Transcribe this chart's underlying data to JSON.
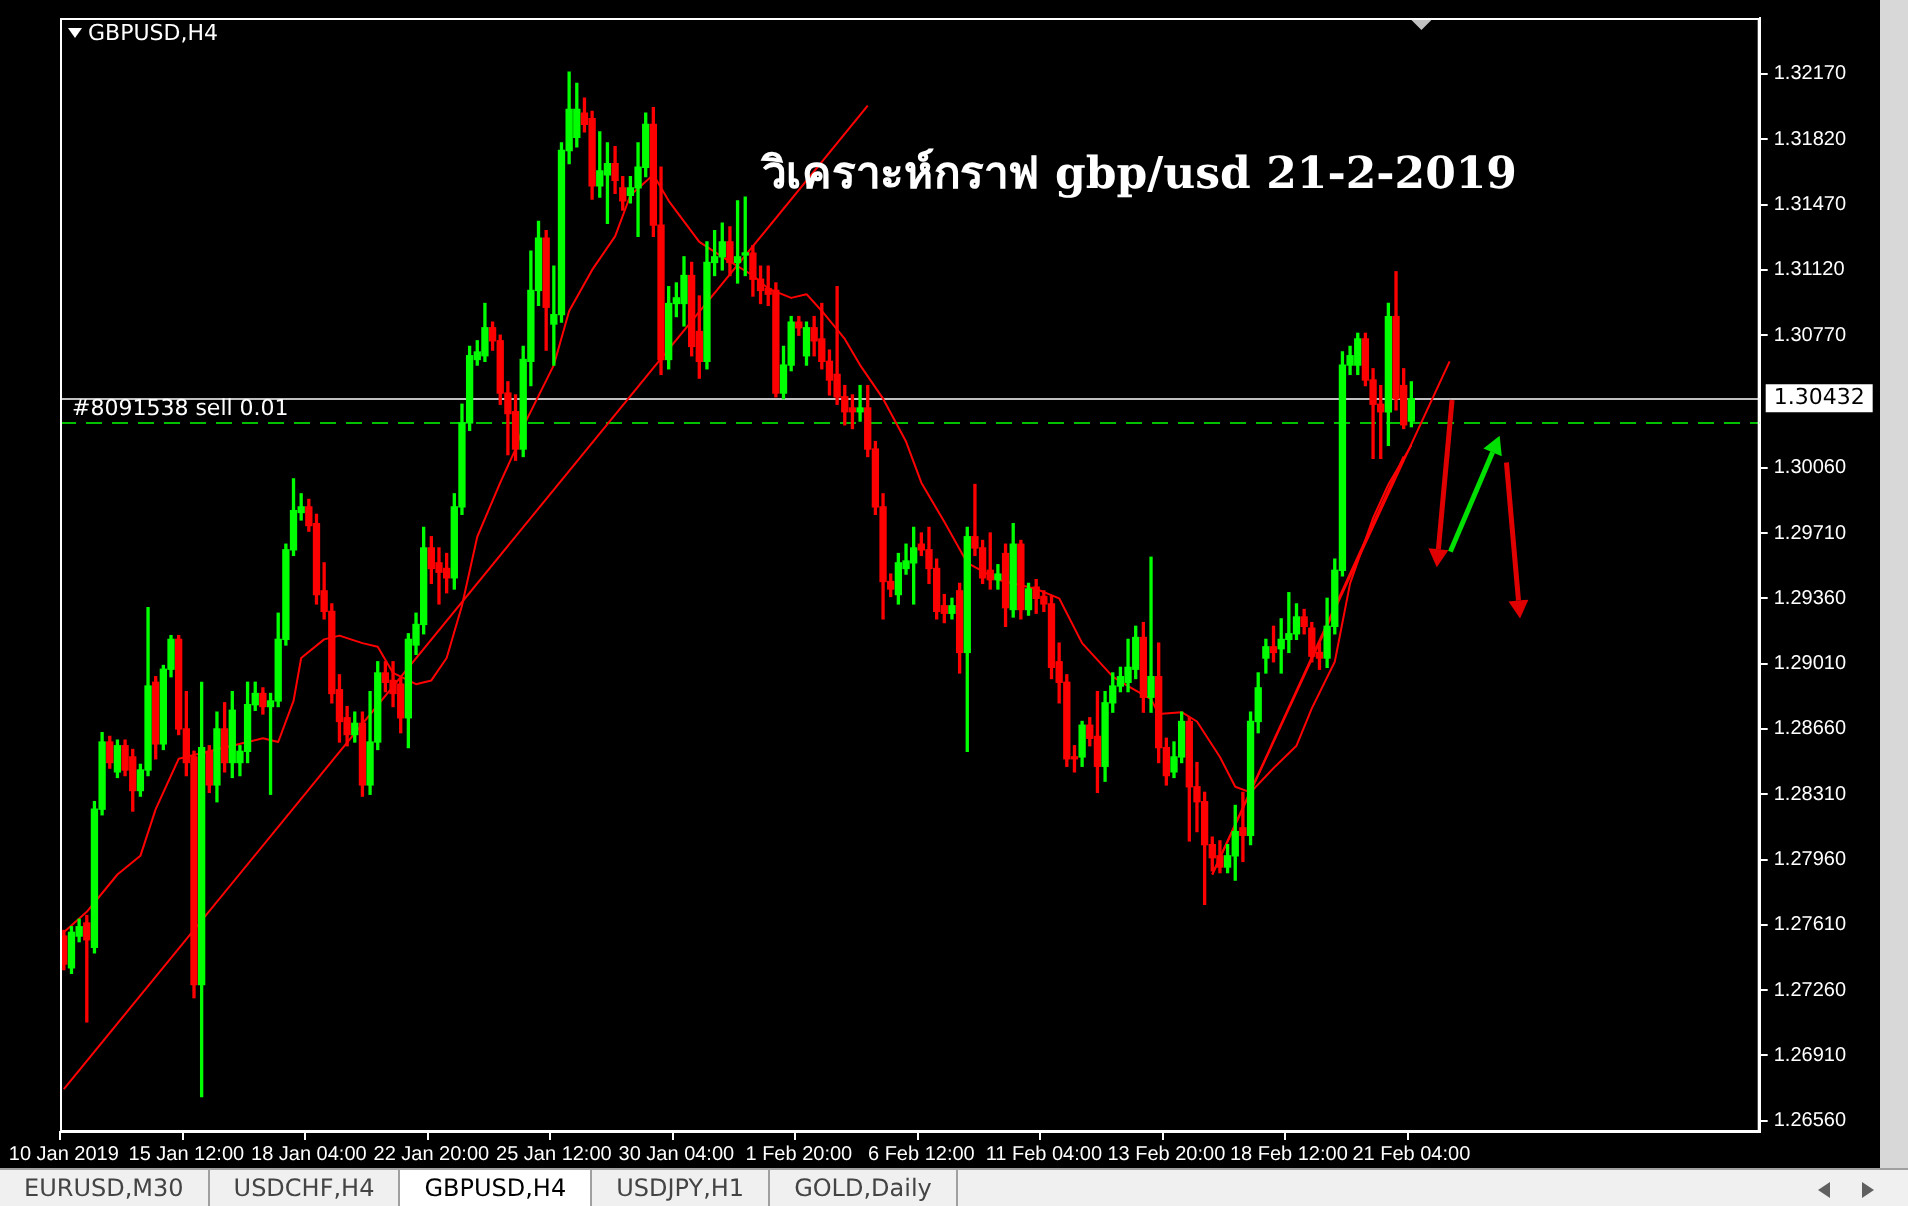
{
  "chart_data": {
    "type": "candlestick",
    "title": "วิเคราะห์กราฟ gbp/usd 21-2-2019",
    "annotations": [
      "GBPUSD,H4",
      "EURUSD,M30",
      "USDCHF,H4",
      "GBPUSD,H4",
      "USDJPY,H1",
      "GOLD,Daily"
    ],
    "categories": [
      "10 Jan 2019",
      null,
      null,
      null,
      null,
      null,
      null,
      null,
      null,
      null,
      null,
      null,
      null,
      null,
      null,
      null,
      "15 Jan 12:00",
      null,
      null,
      null,
      null,
      null,
      null,
      null,
      null,
      null,
      null,
      null,
      null,
      null,
      null,
      null,
      "18 Jan 04:00",
      null,
      null,
      null,
      null,
      null,
      null,
      null,
      null,
      null,
      null,
      null,
      null,
      null,
      null,
      null,
      "22 Jan 20:00",
      null,
      null,
      null,
      null,
      null,
      null,
      null,
      null,
      null,
      null,
      null,
      null,
      null,
      null,
      null,
      "25 Jan 12:00",
      null,
      null,
      null,
      null,
      null,
      null,
      null,
      null,
      null,
      null,
      null,
      null,
      null,
      null,
      null,
      "30 Jan 04:00",
      null,
      null,
      null,
      null,
      null,
      null,
      null,
      null,
      null,
      null,
      null,
      null,
      null,
      null,
      null,
      "1 Feb 20:00",
      null,
      null,
      null,
      null,
      null,
      null,
      null,
      null,
      null,
      null,
      null,
      null,
      null,
      null,
      null,
      "6 Feb 12:00",
      null,
      null,
      null,
      null,
      null,
      null,
      null,
      null,
      null,
      null,
      null,
      null,
      null,
      null,
      null,
      "11 Feb 04:00",
      null,
      null,
      null,
      null,
      null,
      null,
      null,
      null,
      null,
      null,
      null,
      null,
      null,
      null,
      null,
      "13 Feb 20:00",
      null,
      null,
      null,
      null,
      null,
      null,
      null,
      null,
      null,
      null,
      null,
      null,
      null,
      null,
      null,
      "18 Feb 12:00",
      null,
      null,
      null,
      null,
      null,
      null,
      null,
      null,
      null,
      null,
      null,
      null,
      null,
      null,
      null,
      "21 Feb 04:00",
      null,
      null,
      null,
      null,
      null,
      null,
      null,
      null,
      null,
      null,
      null,
      null,
      null,
      null,
      null,
      null,
      null,
      null,
      null,
      null,
      null,
      null,
      null,
      null,
      null,
      null,
      null,
      null,
      null,
      null,
      null,
      null,
      null,
      null,
      null,
      null,
      null,
      null,
      null,
      null,
      null,
      null,
      null,
      null,
      null
    ],
    "ohlc": [
      [
        1.2755,
        1.2758,
        1.2737,
        1.274
      ],
      [
        1.2738,
        1.276,
        1.2735,
        1.2757
      ],
      [
        1.2755,
        1.2764,
        1.2752,
        1.276
      ],
      [
        1.2762,
        1.2766,
        1.2709,
        1.2753
      ],
      [
        1.2749,
        1.2827,
        1.2746,
        1.2823
      ],
      [
        1.2823,
        1.2864,
        1.282,
        1.2859
      ],
      [
        1.2859,
        1.2862,
        1.2845,
        1.2848
      ],
      [
        1.2843,
        1.286,
        1.284,
        1.2857
      ],
      [
        1.2857,
        1.286,
        1.2841,
        1.2844
      ],
      [
        1.2851,
        1.2855,
        1.2822,
        1.2833
      ],
      [
        1.2833,
        1.2847,
        1.283,
        1.2844
      ],
      [
        1.2844,
        1.2931,
        1.2841,
        1.2889
      ],
      [
        1.2891,
        1.2894,
        1.285,
        1.2858
      ],
      [
        1.2858,
        1.29,
        1.2855,
        1.2898
      ],
      [
        1.2898,
        1.2916,
        1.2894,
        1.2914
      ],
      [
        1.2914,
        1.2916,
        1.2863,
        1.2866
      ],
      [
        1.2866,
        1.2886,
        1.2841,
        1.2848
      ],
      [
        1.2851,
        1.2854,
        1.2722,
        1.2729
      ],
      [
        1.2729,
        1.2891,
        1.2669,
        1.2856
      ],
      [
        1.2854,
        1.2857,
        1.2832,
        1.2836
      ],
      [
        1.2836,
        1.2875,
        1.2827,
        1.2866
      ],
      [
        1.2866,
        1.288,
        1.2843,
        1.2848
      ],
      [
        1.2848,
        1.2886,
        1.284,
        1.2876
      ],
      [
        1.2848,
        1.2857,
        1.2841,
        1.2854
      ],
      [
        1.2854,
        1.2891,
        1.2848,
        1.2879
      ],
      [
        1.2879,
        1.2891,
        1.2876,
        1.2885
      ],
      [
        1.2885,
        1.2888,
        1.2874,
        1.2878
      ],
      [
        1.2878,
        1.2885,
        1.2831,
        1.2881
      ],
      [
        1.2881,
        1.2928,
        1.2878,
        1.2914
      ],
      [
        1.2914,
        1.2965,
        1.2911,
        1.2962
      ],
      [
        1.2962,
        1.3,
        1.2959,
        1.2983
      ],
      [
        1.2982,
        1.2992,
        1.2978,
        1.2985
      ],
      [
        1.2985,
        1.2989,
        1.2972,
        1.2975
      ],
      [
        1.2976,
        1.2981,
        1.2933,
        1.2938
      ],
      [
        1.294,
        1.2955,
        1.2925,
        1.2929
      ],
      [
        1.2929,
        1.2933,
        1.288,
        1.2885
      ],
      [
        1.2887,
        1.2895,
        1.2859,
        1.287
      ],
      [
        1.2872,
        1.2878,
        1.2857,
        1.2863
      ],
      [
        1.2863,
        1.2875,
        1.2859,
        1.2869
      ],
      [
        1.2869,
        1.2875,
        1.283,
        1.2836
      ],
      [
        1.2836,
        1.2886,
        1.2831,
        1.2859
      ],
      [
        1.2859,
        1.2902,
        1.2855,
        1.2896
      ],
      [
        1.2896,
        1.2902,
        1.2886,
        1.2891
      ],
      [
        1.2892,
        1.2902,
        1.2878,
        1.2885
      ],
      [
        1.289,
        1.2893,
        1.2864,
        1.2872
      ],
      [
        1.2872,
        1.2917,
        1.2856,
        1.2914
      ],
      [
        1.2911,
        1.2928,
        1.2906,
        1.2922
      ],
      [
        1.2922,
        1.2974,
        1.2917,
        1.2963
      ],
      [
        1.2963,
        1.2969,
        1.2944,
        1.2952
      ],
      [
        1.2955,
        1.2963,
        1.2933,
        1.295
      ],
      [
        1.2952,
        1.296,
        1.2939,
        1.2947
      ],
      [
        1.2947,
        1.2992,
        1.2941,
        1.2985
      ],
      [
        1.2985,
        1.304,
        1.2981,
        1.303
      ],
      [
        1.303,
        1.3071,
        1.3026,
        1.3066
      ],
      [
        1.3064,
        1.3074,
        1.3061,
        1.3068
      ],
      [
        1.3066,
        1.3094,
        1.3063,
        1.3081
      ],
      [
        1.3081,
        1.3084,
        1.3069,
        1.3074
      ],
      [
        1.3074,
        1.3077,
        1.304,
        1.3046
      ],
      [
        1.3046,
        1.3052,
        1.3013,
        1.3035
      ],
      [
        1.3036,
        1.3045,
        1.301,
        1.3016
      ],
      [
        1.3016,
        1.3071,
        1.3012,
        1.3064
      ],
      [
        1.3063,
        1.3122,
        1.305,
        1.3101
      ],
      [
        1.3101,
        1.3138,
        1.3093,
        1.3129
      ],
      [
        1.3129,
        1.3133,
        1.3069,
        1.3092
      ],
      [
        1.3083,
        1.3114,
        1.3061,
        1.3088
      ],
      [
        1.3088,
        1.318,
        1.3084,
        1.3176
      ],
      [
        1.3176,
        1.3218,
        1.3169,
        1.3198
      ],
      [
        1.3183,
        1.3212,
        1.3178,
        1.3198
      ],
      [
        1.3196,
        1.3204,
        1.3186,
        1.319
      ],
      [
        1.3193,
        1.3197,
        1.315,
        1.3157
      ],
      [
        1.3157,
        1.3186,
        1.3151,
        1.3165
      ],
      [
        1.3163,
        1.318,
        1.3137,
        1.3169
      ],
      [
        1.3169,
        1.3178,
        1.3153,
        1.316
      ],
      [
        1.3156,
        1.3162,
        1.3144,
        1.3149
      ],
      [
        1.3152,
        1.3162,
        1.3148,
        1.3156
      ],
      [
        1.3156,
        1.318,
        1.313,
        1.3167
      ],
      [
        1.3167,
        1.3196,
        1.3162,
        1.319
      ],
      [
        1.319,
        1.3199,
        1.313,
        1.3136
      ],
      [
        1.3136,
        1.3167,
        1.3056,
        1.3064
      ],
      [
        1.3064,
        1.3103,
        1.3059,
        1.3094
      ],
      [
        1.3094,
        1.3105,
        1.3087,
        1.3097
      ],
      [
        1.3094,
        1.3119,
        1.3082,
        1.3109
      ],
      [
        1.3109,
        1.3116,
        1.3066,
        1.3071
      ],
      [
        1.3079,
        1.3098,
        1.3054,
        1.3063
      ],
      [
        1.3063,
        1.3127,
        1.3059,
        1.3116
      ],
      [
        1.3116,
        1.3133,
        1.3109,
        1.3119
      ],
      [
        1.3119,
        1.3137,
        1.3112,
        1.3127
      ],
      [
        1.3127,
        1.3135,
        1.3109,
        1.3116
      ],
      [
        1.3116,
        1.3149,
        1.3105,
        1.3119
      ],
      [
        1.312,
        1.3151,
        1.3109,
        1.3121
      ],
      [
        1.3121,
        1.3125,
        1.3098,
        1.3107
      ],
      [
        1.3107,
        1.3114,
        1.3094,
        1.3101
      ],
      [
        1.3102,
        1.3114,
        1.3093,
        1.3099
      ],
      [
        1.3101,
        1.3105,
        1.3044,
        1.3046
      ],
      [
        1.3046,
        1.3071,
        1.3043,
        1.3061
      ],
      [
        1.3061,
        1.3087,
        1.3058,
        1.3084
      ],
      [
        1.3084,
        1.3087,
        1.3077,
        1.3081
      ],
      [
        1.3066,
        1.3084,
        1.3061,
        1.3081
      ],
      [
        1.3081,
        1.3087,
        1.3066,
        1.3074
      ],
      [
        1.3075,
        1.3094,
        1.3059,
        1.3063
      ],
      [
        1.3063,
        1.3069,
        1.3045,
        1.3053
      ],
      [
        1.3056,
        1.3103,
        1.304,
        1.3044
      ],
      [
        1.3044,
        1.305,
        1.3029,
        1.3036
      ],
      [
        1.3038,
        1.3045,
        1.3027,
        1.3036
      ],
      [
        1.3036,
        1.305,
        1.3031,
        1.3038
      ],
      [
        1.3038,
        1.305,
        1.3012,
        1.3016
      ],
      [
        1.3016,
        1.302,
        1.2981,
        1.2985
      ],
      [
        1.2985,
        1.2992,
        1.2925,
        1.2945
      ],
      [
        1.2945,
        1.2949,
        1.2937,
        1.2941
      ],
      [
        1.2938,
        1.296,
        1.2933,
        1.2955
      ],
      [
        1.2952,
        1.2965,
        1.2949,
        1.2956
      ],
      [
        1.2955,
        1.2974,
        1.2933,
        1.2963
      ],
      [
        1.2965,
        1.2971,
        1.2959,
        1.2962
      ],
      [
        1.2962,
        1.2974,
        1.2944,
        1.2952
      ],
      [
        1.2952,
        1.2957,
        1.2925,
        1.2929
      ],
      [
        1.2932,
        1.2938,
        1.2923,
        1.2928
      ],
      [
        1.2928,
        1.2936,
        1.2925,
        1.2932
      ],
      [
        1.294,
        1.2944,
        1.2896,
        1.2907
      ],
      [
        1.2907,
        1.2974,
        1.2854,
        1.2969
      ],
      [
        1.2969,
        1.2997,
        1.2959,
        1.2963
      ],
      [
        1.2963,
        1.2967,
        1.2944,
        1.2947
      ],
      [
        1.2951,
        1.2971,
        1.2941,
        1.2946
      ],
      [
        1.2946,
        1.2954,
        1.2941,
        1.2949
      ],
      [
        1.296,
        1.2965,
        1.2921,
        1.2931
      ],
      [
        1.293,
        1.2976,
        1.2926,
        1.2965
      ],
      [
        1.2965,
        1.2967,
        1.2925,
        1.293
      ],
      [
        1.293,
        1.2944,
        1.2927,
        1.2941
      ],
      [
        1.2942,
        1.2946,
        1.2928,
        1.2936
      ],
      [
        1.2937,
        1.294,
        1.2929,
        1.2933
      ],
      [
        1.2933,
        1.2937,
        1.2893,
        1.2899
      ],
      [
        1.2902,
        1.2912,
        1.288,
        1.2891
      ],
      [
        1.2891,
        1.2895,
        1.2846,
        1.285
      ],
      [
        1.2851,
        1.2857,
        1.2843,
        1.285
      ],
      [
        1.2851,
        1.287,
        1.2846,
        1.2868
      ],
      [
        1.2868,
        1.2872,
        1.2857,
        1.2861
      ],
      [
        1.2862,
        1.2886,
        1.2832,
        1.2846
      ],
      [
        1.2846,
        1.2886,
        1.2838,
        1.288
      ],
      [
        1.288,
        1.2896,
        1.2875,
        1.2889
      ],
      [
        1.2889,
        1.2899,
        1.2886,
        1.2894
      ],
      [
        1.2891,
        1.2914,
        1.2886,
        1.2899
      ],
      [
        1.2898,
        1.2921,
        1.2893,
        1.2915
      ],
      [
        1.2915,
        1.2923,
        1.2875,
        1.2883
      ],
      [
        1.2883,
        1.2958,
        1.2875,
        1.2894
      ],
      [
        1.2894,
        1.2912,
        1.2848,
        1.2856
      ],
      [
        1.2856,
        1.2861,
        1.2836,
        1.2841
      ],
      [
        1.2843,
        1.2859,
        1.284,
        1.2851
      ],
      [
        1.2851,
        1.2875,
        1.2848,
        1.287
      ],
      [
        1.287,
        1.2872,
        1.2806,
        1.2835
      ],
      [
        1.2835,
        1.2848,
        1.2811,
        1.2827
      ],
      [
        1.2827,
        1.2832,
        1.2772,
        1.2804
      ],
      [
        1.2804,
        1.2808,
        1.279,
        1.2797
      ],
      [
        1.2798,
        1.2806,
        1.2789,
        1.2792
      ],
      [
        1.2792,
        1.2804,
        1.2789,
        1.2798
      ],
      [
        1.2798,
        1.2825,
        1.2785,
        1.2811
      ],
      [
        1.2813,
        1.2832,
        1.2795,
        1.2809
      ],
      [
        1.2809,
        1.2875,
        1.2804,
        1.287
      ],
      [
        1.287,
        1.2896,
        1.2864,
        1.2888
      ],
      [
        1.2904,
        1.2914,
        1.2896,
        1.291
      ],
      [
        1.291,
        1.2921,
        1.2902,
        1.2907
      ],
      [
        1.2909,
        1.2925,
        1.2896,
        1.2914
      ],
      [
        1.2914,
        1.2939,
        1.2907,
        1.2917
      ],
      [
        1.2917,
        1.2933,
        1.2914,
        1.2926
      ],
      [
        1.2926,
        1.293,
        1.2917,
        1.2921
      ],
      [
        1.292,
        1.2923,
        1.2902,
        1.2905
      ],
      [
        1.2907,
        1.2912,
        1.2898,
        1.2904
      ],
      [
        1.2904,
        1.2936,
        1.2899,
        1.2921
      ],
      [
        1.2921,
        1.2957,
        1.2917,
        1.2951
      ],
      [
        1.2951,
        1.3068,
        1.2948,
        1.3061
      ],
      [
        1.3061,
        1.3071,
        1.3056,
        1.3066
      ],
      [
        1.3061,
        1.3078,
        1.3056,
        1.3075
      ],
      [
        1.3075,
        1.3078,
        1.305,
        1.3053
      ],
      [
        1.3053,
        1.3059,
        1.3011,
        1.304
      ],
      [
        1.304,
        1.305,
        1.3011,
        1.3036
      ],
      [
        1.3036,
        1.3094,
        1.3018,
        1.3087
      ],
      [
        1.3087,
        1.3111,
        1.3037,
        1.3043
      ],
      [
        1.305,
        1.3059,
        1.3027,
        1.3029
      ],
      [
        1.3031,
        1.3052,
        1.3028,
        1.3043
      ],
      null,
      null,
      null,
      null,
      null,
      null,
      null,
      null,
      null,
      null,
      null,
      null,
      null,
      null,
      null,
      null,
      null,
      null,
      null,
      null,
      null,
      null,
      null,
      null,
      null,
      null,
      null,
      null,
      null,
      null,
      null,
      null,
      null,
      null,
      null,
      null,
      null,
      null,
      null,
      null,
      null,
      null,
      null,
      null,
      null
    ],
    "colors": [
      "#ff0000",
      "#00ff00",
      "#00ff00",
      "#ff0000",
      "#00ff00",
      "#00ff00",
      "#ff0000",
      "#00ff00",
      "#ff0000",
      "#ff0000",
      "#00ff00",
      "#00ff00",
      "#ff0000",
      "#00ff00",
      "#00ff00",
      "#ff0000",
      "#ff0000",
      "#ff0000",
      "#00ff00",
      "#ff0000",
      "#00ff00",
      "#ff0000",
      "#00ff00",
      "#00ff00",
      "#00ff00",
      "#00ff00",
      "#ff0000",
      "#00ff00",
      "#00ff00",
      "#00ff00",
      "#00ff00",
      "#00ff00",
      "#ff0000",
      "#ff0000",
      "#ff0000",
      "#ff0000",
      "#ff0000",
      "#ff0000",
      "#00ff00",
      "#ff0000",
      "#00ff00",
      "#00ff00",
      "#ff0000",
      "#ff0000",
      "#ff0000",
      "#00ff00",
      "#00ff00",
      "#00ff00",
      "#ff0000",
      "#ff0000",
      "#ff0000",
      "#00ff00",
      "#00ff00",
      "#00ff00",
      "#00ff00",
      "#00ff00",
      "#ff0000",
      "#ff0000",
      "#ff0000",
      "#ff0000",
      "#00ff00",
      "#00ff00",
      "#00ff00",
      "#ff0000",
      "#00ff00",
      "#00ff00",
      "#00ff00",
      "#00ff00",
      "#ff0000",
      "#ff0000",
      "#00ff00",
      "#00ff00",
      "#ff0000",
      "#ff0000",
      "#00ff00",
      "#00ff00",
      "#00ff00",
      "#ff0000",
      "#ff0000",
      "#00ff00",
      "#00ff00",
      "#00ff00",
      "#ff0000",
      "#ff0000",
      "#00ff00",
      "#00ff00",
      "#00ff00",
      "#ff0000",
      "#00ff00",
      "#00ff00",
      "#ff0000",
      "#ff0000",
      "#ff0000",
      "#ff0000",
      "#00ff00",
      "#00ff00",
      "#ff0000",
      "#00ff00",
      "#ff0000",
      "#ff0000",
      "#ff0000",
      "#ff0000",
      "#ff0000",
      "#ff0000",
      "#00ff00",
      "#ff0000",
      "#ff0000",
      "#ff0000",
      "#ff0000",
      "#00ff00",
      "#00ff00",
      "#00ff00",
      "#ff0000",
      "#ff0000",
      "#ff0000",
      "#ff0000",
      "#00ff00",
      "#ff0000",
      "#00ff00",
      "#ff0000",
      "#ff0000",
      "#ff0000",
      "#00ff00",
      "#ff0000",
      "#00ff00",
      "#ff0000",
      "#00ff00",
      "#ff0000",
      "#ff0000",
      "#ff0000",
      "#ff0000",
      "#ff0000",
      "#ff0000",
      "#00ff00",
      "#ff0000",
      "#ff0000",
      "#00ff00",
      "#00ff00",
      "#00ff00",
      "#00ff00",
      "#00ff00",
      "#ff0000",
      "#00ff00",
      "#ff0000",
      "#ff0000",
      "#00ff00",
      "#00ff00",
      "#ff0000",
      "#ff0000",
      "#ff0000",
      "#ff0000",
      "#ff0000",
      "#00ff00",
      "#00ff00",
      "#ff0000",
      "#00ff00",
      "#00ff00",
      "#00ff00",
      "#ff0000",
      "#00ff00",
      "#00ff00",
      "#00ff00",
      "#ff0000",
      "#ff0000",
      "#ff0000",
      "#00ff00",
      "#00ff00",
      "#00ff00",
      "#00ff00",
      "#00ff00",
      "#ff0000",
      "#ff0000",
      "#ff0000",
      "#00ff00",
      "#ff0000",
      "#ff0000",
      "#00ff00",
      null,
      null,
      null,
      null,
      null,
      null,
      null,
      null,
      null,
      null,
      null,
      null,
      null,
      null,
      null,
      null,
      null,
      null,
      null,
      null,
      null,
      null,
      null,
      null,
      null,
      null,
      null,
      null,
      null,
      null,
      null,
      null,
      null,
      null,
      null,
      null,
      null,
      null,
      null,
      null,
      null,
      null,
      null,
      null,
      null
    ],
    "series": [
      {
        "type": "line",
        "color": "#ff0000",
        "values": [
          1.2757,
          null,
          null,
          1.2768,
          null,
          null,
          null,
          1.2788,
          null,
          null,
          1.2798,
          null,
          1.2823,
          null,
          null,
          1.285,
          null,
          null,
          null,
          1.2854,
          null,
          null,
          null,
          null,
          1.2859,
          null,
          1.2861,
          null,
          1.2859,
          null,
          1.2881,
          1.2904,
          null,
          null,
          1.2914,
          null,
          1.2916,
          null,
          null,
          1.2912,
          null,
          1.291,
          null,
          1.2896,
          null,
          null,
          1.289,
          null,
          1.2892,
          null,
          1.2904,
          null,
          1.2932,
          null,
          1.2969,
          null,
          null,
          1.2998,
          null,
          1.3016,
          1.3028,
          null,
          null,
          null,
          1.3061,
          null,
          1.309,
          null,
          null,
          1.3112,
          null,
          null,
          1.313,
          null,
          1.3152,
          null,
          null,
          1.3163,
          null,
          1.3149,
          null,
          null,
          null,
          1.3127,
          null,
          null,
          1.3119,
          null,
          null,
          null,
          1.3109,
          null,
          1.3102,
          null,
          null,
          1.3097,
          null,
          1.3099,
          null,
          1.309,
          null,
          null,
          1.3075,
          null,
          1.3061,
          null,
          null,
          1.3043,
          null,
          null,
          1.302,
          null,
          1.2998,
          null,
          null,
          1.2977,
          null,
          null,
          1.2955,
          null,
          null,
          null,
          1.2946,
          null,
          null,
          null,
          null,
          1.2941,
          null,
          null,
          1.2936,
          null,
          null,
          1.2912,
          null,
          null,
          null,
          1.2894,
          null,
          1.2889,
          null,
          null,
          1.2882,
          1.2874,
          null,
          null,
          1.2875,
          null,
          1.287,
          null,
          null,
          1.2851,
          null,
          1.2835,
          null,
          1.2832,
          null,
          null,
          1.2845,
          null,
          null,
          1.2857,
          null,
          1.2877,
          null,
          null,
          1.2902,
          null,
          1.2944,
          null,
          null,
          1.2979,
          null,
          1.2997,
          null,
          null,
          1.3018,
          null,
          null,
          null,
          null,
          null,
          null,
          null,
          null,
          null,
          null,
          null,
          null,
          null,
          null,
          null,
          null,
          null,
          null,
          null,
          null,
          null,
          null,
          null,
          null,
          null,
          null,
          null,
          null,
          null,
          null,
          null,
          null,
          null,
          null,
          null,
          null,
          null,
          null,
          null,
          null,
          null,
          null,
          null,
          null,
          null
        ]
      },
      {
        "type": "line",
        "color": "#ff0000",
        "values": [
          1.2673,
          null,
          null,
          null,
          null,
          null,
          null,
          null,
          null,
          null,
          null,
          null,
          null,
          null,
          null,
          null,
          null,
          null,
          null,
          null,
          null,
          null,
          null,
          null,
          null,
          null,
          null,
          null,
          null,
          null,
          null,
          null,
          null,
          null,
          null,
          null,
          null,
          null,
          null,
          null,
          null,
          null,
          null,
          null,
          null,
          null,
          null,
          null,
          null,
          null,
          null,
          null,
          null,
          null,
          null,
          null,
          null,
          null,
          null,
          null,
          null,
          null,
          null,
          null,
          null,
          null,
          null,
          null,
          null,
          null,
          null,
          null,
          null,
          null,
          null,
          null,
          null,
          null,
          null,
          null,
          null,
          null,
          null,
          null,
          null,
          null,
          null,
          null,
          null,
          null,
          null,
          null,
          null,
          null,
          null,
          null,
          null,
          null,
          null,
          null,
          null,
          null,
          null,
          null,
          null,
          1.32,
          null,
          null,
          null,
          null,
          null,
          null,
          null,
          null,
          null,
          null,
          null,
          null,
          null,
          null,
          null,
          null,
          null,
          null,
          null,
          null,
          null,
          null,
          null,
          null,
          null,
          null,
          null,
          null,
          null,
          null,
          null,
          null,
          null,
          null,
          null,
          null,
          null,
          null,
          null,
          null,
          null,
          null,
          null,
          null,
          null,
          null,
          null,
          null,
          null,
          null,
          null,
          null,
          null,
          null,
          null,
          null,
          null,
          null,
          null,
          null,
          null,
          null,
          null,
          null,
          null,
          null,
          null,
          null,
          null,
          null,
          null,
          null,
          null,
          null,
          null,
          null,
          null,
          null,
          null,
          null,
          null,
          null,
          null,
          null,
          null,
          null,
          null,
          null,
          null,
          null,
          null,
          null,
          null,
          null,
          null,
          null,
          null,
          null,
          null,
          null,
          null,
          null,
          null,
          null,
          null,
          null,
          null,
          null,
          null,
          null,
          null,
          null,
          null,
          null,
          null,
          null
        ]
      },
      {
        "type": "line",
        "color": "#ff0000",
        "values": [
          null,
          null,
          null,
          null,
          null,
          null,
          null,
          null,
          null,
          null,
          null,
          null,
          null,
          null,
          null,
          null,
          null,
          null,
          null,
          null,
          null,
          null,
          null,
          null,
          null,
          null,
          null,
          null,
          null,
          null,
          null,
          null,
          null,
          null,
          null,
          null,
          null,
          null,
          null,
          null,
          null,
          null,
          null,
          null,
          null,
          null,
          null,
          null,
          null,
          null,
          null,
          null,
          null,
          null,
          null,
          null,
          null,
          null,
          null,
          null,
          null,
          null,
          null,
          null,
          null,
          null,
          null,
          null,
          null,
          null,
          null,
          null,
          null,
          null,
          null,
          null,
          null,
          null,
          null,
          null,
          null,
          null,
          null,
          null,
          null,
          null,
          null,
          null,
          null,
          null,
          null,
          null,
          null,
          null,
          null,
          null,
          null,
          null,
          null,
          null,
          null,
          null,
          null,
          null,
          null,
          null,
          null,
          null,
          null,
          null,
          null,
          null,
          null,
          null,
          null,
          null,
          null,
          null,
          null,
          null,
          null,
          null,
          null,
          null,
          null,
          null,
          null,
          null,
          null,
          null,
          null,
          null,
          null,
          null,
          null,
          null,
          null,
          null,
          null,
          null,
          null,
          null,
          null,
          null,
          null,
          null,
          null,
          null,
          null,
          null,
          1.2788,
          null,
          null,
          null,
          null,
          null,
          null,
          null,
          null,
          null,
          null,
          null,
          null,
          null,
          null,
          null,
          null,
          null,
          null,
          null,
          null,
          null,
          null,
          null,
          null,
          null,
          null,
          null,
          null,
          null,
          null,
          1.3063,
          null,
          null,
          null,
          null,
          null,
          null,
          null,
          null,
          null,
          null,
          null,
          null,
          null,
          null,
          null,
          null,
          null,
          null,
          null,
          null,
          null,
          null,
          null,
          null,
          null,
          null,
          null,
          null,
          null,
          null,
          null,
          null,
          null,
          null,
          null,
          null,
          null,
          null,
          null,
          null
        ]
      },
      {
        "type": "line",
        "color": "#ff0000",
        "values": [
          null,
          null,
          null,
          null,
          null,
          null,
          null,
          null,
          null,
          null,
          null,
          null,
          null,
          null,
          null,
          null,
          null,
          null,
          null,
          null,
          null,
          null,
          null,
          null,
          null,
          null,
          null,
          null,
          null,
          null,
          null,
          null,
          null,
          null,
          null,
          null,
          null,
          null,
          null,
          null,
          null,
          null,
          null,
          null,
          null,
          null,
          null,
          null,
          null,
          null,
          null,
          null,
          null,
          null,
          null,
          null,
          null,
          null,
          null,
          null,
          null,
          null,
          null,
          null,
          null,
          null,
          null,
          null,
          null,
          null,
          null,
          null,
          null,
          null,
          null,
          null,
          null,
          null,
          null,
          null,
          null,
          null,
          null,
          null,
          null,
          null,
          null,
          null,
          null,
          null,
          null,
          null,
          null,
          null,
          null,
          null,
          null,
          null,
          null,
          null,
          null,
          null,
          null,
          null,
          null,
          null,
          null,
          null,
          null,
          null,
          null,
          null,
          null,
          null,
          null,
          null,
          null,
          null,
          null,
          null,
          null,
          null,
          null,
          null,
          null,
          null,
          null,
          null,
          null,
          null,
          null,
          null,
          null,
          null,
          null,
          null,
          null,
          null,
          null,
          null,
          null,
          null,
          null,
          null,
          null,
          null,
          null,
          null,
          null,
          null,
          1.2788,
          null,
          null,
          null,
          null,
          null,
          null,
          null,
          null,
          null,
          null,
          null,
          null,
          null,
          null,
          null,
          null,
          null,
          null,
          null,
          null,
          null,
          null,
          null,
          null,
          1.3012,
          null,
          null,
          null,
          null,
          null,
          null,
          null,
          null,
          null,
          null,
          null,
          null,
          null,
          null,
          null,
          null,
          null,
          null,
          null,
          null,
          null,
          null,
          null,
          null,
          null,
          null,
          null,
          null,
          null,
          null,
          null,
          null,
          null,
          null,
          null,
          null,
          null,
          null,
          null,
          null,
          null,
          null,
          null,
          null,
          null,
          null
        ]
      }
    ],
    "ref_lines": [
      {
        "axis": "y",
        "value": 1.30432,
        "label": "1.30432",
        "color": "#c0c0c0"
      },
      {
        "axis": "y",
        "value": 1.303,
        "label": "#8091538 sell 0.01",
        "color": "#00c000",
        "line_style": "dashed"
      }
    ],
    "ylim": [
      1.265,
      1.3247
    ],
    "yticks": [
      {
        "value": 1.2656,
        "label": "1.26560"
      },
      {
        "value": 1.2691,
        "label": "1.26910"
      },
      {
        "value": 1.2726,
        "label": "1.27260"
      },
      {
        "value": 1.2761,
        "label": "1.27610"
      },
      {
        "value": 1.2796,
        "label": "1.27960"
      },
      {
        "value": 1.2831,
        "label": "1.28310"
      },
      {
        "value": 1.2866,
        "label": "1.28660"
      },
      {
        "value": 1.2901,
        "label": "1.29010"
      },
      {
        "value": 1.2936,
        "label": "1.29360"
      },
      {
        "value": 1.2971,
        "label": "1.29710"
      },
      {
        "value": 1.3006,
        "label": "1.30060"
      },
      {
        "value": 1.3077,
        "label": "1.30770"
      },
      {
        "value": 1.3112,
        "label": "1.31120"
      },
      {
        "value": 1.3147,
        "label": "1.31470"
      },
      {
        "value": 1.3182,
        "label": "1.31820"
      },
      {
        "value": 1.3217,
        "label": "1.32170"
      }
    ],
    "grid": false,
    "legend": false
  }
}
